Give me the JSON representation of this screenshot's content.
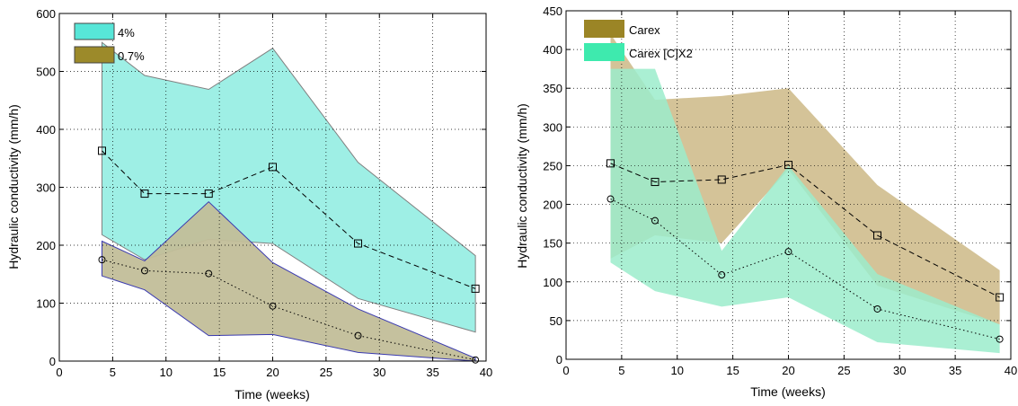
{
  "colors": {
    "cyan_fill": "#99EEE4",
    "cyan_swatch": "#57E6D8",
    "olive_fill": "#C2BE99",
    "olive_swatch": "#9C8A2A",
    "green_fill": "#9BECCB",
    "green_swatch": "#3EEAAE",
    "tan_fill": "#CDB886",
    "tan_swatch": "#9B8526",
    "outline_blue": "#3b3bb0",
    "outline_grey": "#808080"
  },
  "chart_data": [
    {
      "type": "area",
      "xlabel": "Time (weeks)",
      "ylabel": "Hydraulic conductivity (mm/h)",
      "xlim": [
        0,
        40
      ],
      "ylim": [
        0,
        600
      ],
      "xticks": [
        "0",
        "5",
        "10",
        "15",
        "20",
        "25",
        "30",
        "35",
        "40"
      ],
      "yticks": [
        "0",
        "100",
        "200",
        "300",
        "400",
        "500",
        "600"
      ],
      "grid": true,
      "legend_position": "top-left",
      "legend": [
        "4%",
        "0.7%"
      ],
      "series": [
        {
          "name": "4%",
          "band_x": [
            4,
            8,
            14,
            20,
            28,
            39
          ],
          "band_upper": [
            550,
            493,
            469,
            540,
            343,
            182
          ],
          "band_lower": [
            218,
            175,
            210,
            203,
            108,
            50
          ],
          "mean_x": [
            4,
            8,
            14,
            20,
            28,
            39
          ],
          "mean": [
            363,
            289,
            289,
            335,
            203,
            125
          ],
          "marker": "square",
          "line_style": "dashed"
        },
        {
          "name": "0.7%",
          "band_x": [
            4,
            8,
            14,
            20,
            28,
            39
          ],
          "band_upper": [
            207,
            173,
            275,
            170,
            90,
            5
          ],
          "band_lower": [
            147,
            123,
            44,
            46,
            15,
            0
          ],
          "mean_x": [
            4,
            8,
            14,
            20,
            28,
            39
          ],
          "mean": [
            175,
            156,
            151,
            95,
            44,
            2
          ],
          "marker": "circle",
          "line_style": "dotted"
        }
      ]
    },
    {
      "type": "area",
      "xlabel": "Time (weeks)",
      "ylabel": "Hydraulic conductivity (mm/h)",
      "xlim": [
        0,
        40
      ],
      "ylim": [
        0,
        450
      ],
      "xticks": [
        "0",
        "5",
        "10",
        "15",
        "20",
        "25",
        "30",
        "35",
        "40"
      ],
      "yticks": [
        "0",
        "50",
        "100",
        "150",
        "200",
        "250",
        "300",
        "350",
        "400",
        "450"
      ],
      "grid": true,
      "legend_position": "top-left",
      "legend": [
        "Carex",
        "Carex [C]X2"
      ],
      "series": [
        {
          "name": "Carex",
          "band_x": [
            4,
            8,
            14,
            20,
            28,
            39
          ],
          "band_upper": [
            420,
            335,
            340,
            350,
            225,
            115
          ],
          "band_lower": [
            130,
            160,
            150,
            245,
            95,
            45
          ],
          "mean_x": [
            4,
            8,
            14,
            20,
            28,
            39
          ],
          "mean": [
            253,
            229,
            232,
            251,
            160,
            80
          ],
          "marker": "square",
          "line_style": "dashed"
        },
        {
          "name": "Carex [C]X2",
          "band_x": [
            4,
            8,
            14,
            20,
            28,
            39
          ],
          "band_upper": [
            375,
            375,
            140,
            250,
            110,
            45
          ],
          "band_lower": [
            125,
            88,
            68,
            80,
            22,
            8
          ],
          "mean_x": [
            4,
            8,
            14,
            20,
            28,
            39
          ],
          "mean": [
            207,
            179,
            109,
            139,
            65,
            26
          ],
          "marker": "circle",
          "line_style": "dotted"
        }
      ]
    }
  ]
}
